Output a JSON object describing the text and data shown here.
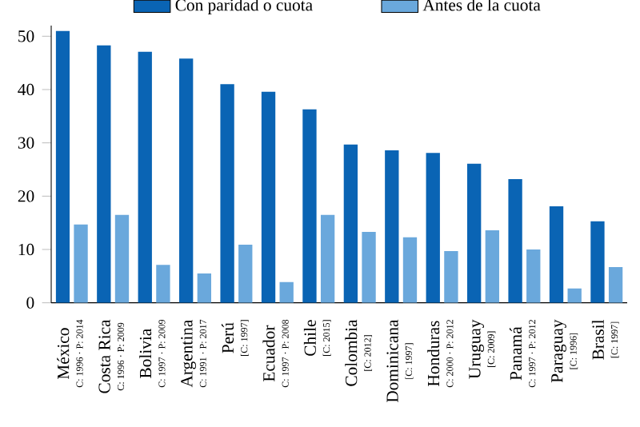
{
  "chart_data": {
    "type": "bar",
    "categories": [
      "México",
      "Costa Rica",
      "Bolivia",
      "Argentina",
      "Perú",
      "Ecuador",
      "Chile",
      "Colombia",
      "Dominicana",
      "Honduras",
      "Uruguay",
      "Panamá",
      "Paraguay",
      "Brasil"
    ],
    "annotations": [
      "C: 1996 · P: 2014",
      "C: 1996 · P: 2009",
      "C: 1997 · P: 2009",
      "C: 1991 · P: 2017",
      "[C: 1997]",
      "C: 1997 · P: 2008",
      "[C: 2015]",
      "[C: 2012]",
      "[C: 1997]",
      "C: 2000 · P: 2012",
      "[C: 2009]",
      "C: 1997 · P: 2012",
      "[C: 1996]",
      "[C: 1997]"
    ],
    "series": [
      {
        "name": "Con paridad o cuota",
        "color": "#0a64b4",
        "values": [
          51.0,
          48.3,
          47.1,
          45.8,
          41.0,
          39.6,
          36.3,
          29.7,
          28.6,
          28.1,
          26.1,
          23.2,
          18.1,
          15.3
        ]
      },
      {
        "name": "Antes de la cuota",
        "color": "#6aa8dc",
        "values": [
          14.7,
          16.5,
          7.1,
          5.5,
          10.9,
          3.9,
          16.5,
          13.3,
          12.3,
          9.7,
          13.6,
          10.0,
          2.7,
          6.7
        ]
      }
    ],
    "ylim": [
      0,
      52
    ],
    "yticks": [
      0,
      10,
      20,
      30,
      40,
      50
    ],
    "legend": "top"
  }
}
